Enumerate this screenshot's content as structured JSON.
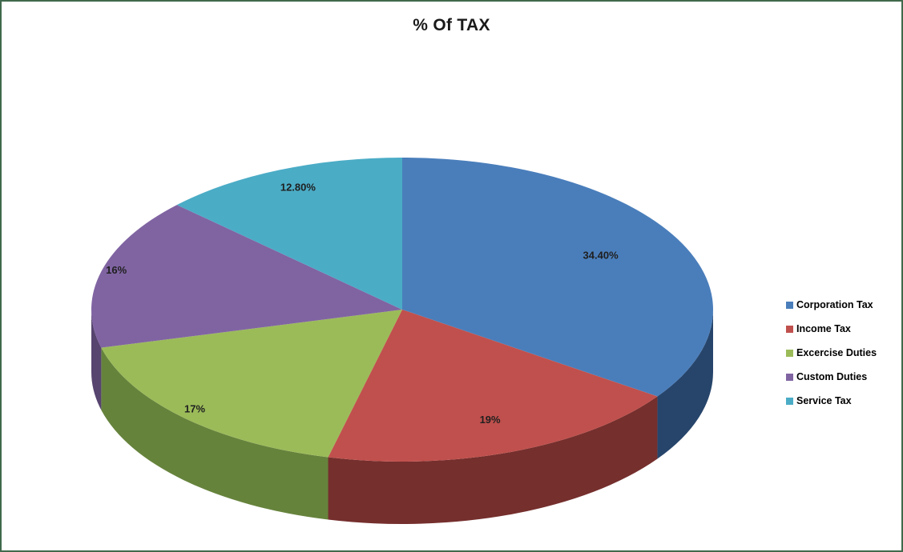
{
  "frame": {
    "border_color": "#406a4c",
    "background": "#ffffff"
  },
  "chart_data": {
    "type": "pie",
    "style": "3d",
    "title": "% Of TAX",
    "legend_position": "right",
    "series": [
      {
        "name": "Corporation Tax",
        "value": 34.4,
        "label": "34.40%",
        "color": "#4a7ebb",
        "side_color": "#27456b"
      },
      {
        "name": "Income Tax",
        "value": 19,
        "label": "19%",
        "color": "#c0504d",
        "side_color": "#752f2d"
      },
      {
        "name": "Excercise Duties",
        "value": 17,
        "label": "17%",
        "color": "#9bbb59",
        "side_color": "#66833c"
      },
      {
        "name": "Custom Duties",
        "value": 16,
        "label": "16%",
        "color": "#8064a2",
        "side_color": "#57446f"
      },
      {
        "name": "Service Tax",
        "value": 12.8,
        "label": "12.80%",
        "color": "#4bacc6",
        "side_color": "#2e7d96"
      }
    ]
  }
}
